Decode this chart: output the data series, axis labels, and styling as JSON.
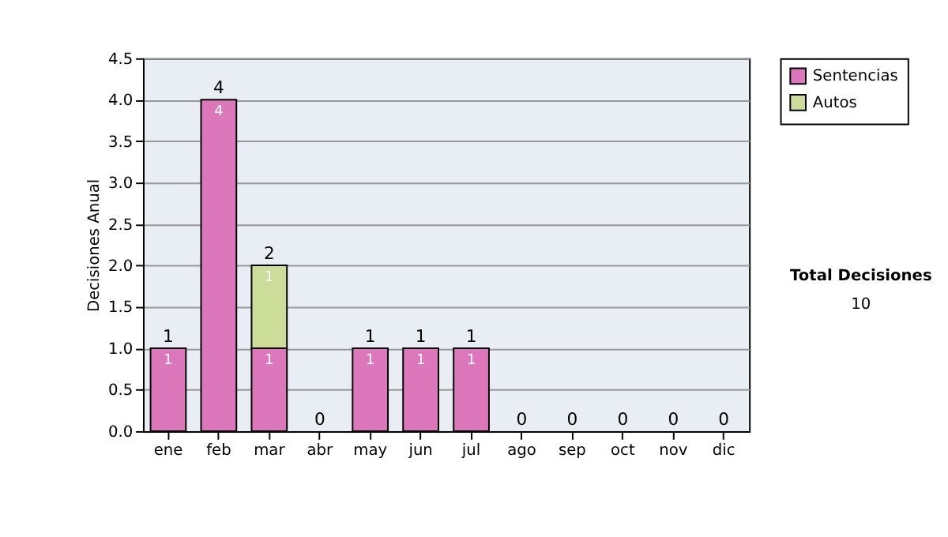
{
  "chart_data": {
    "type": "bar",
    "stacked": true,
    "ylabel": "Decisiones Anual",
    "categories": [
      "ene",
      "feb",
      "mar",
      "abr",
      "may",
      "jun",
      "jul",
      "ago",
      "sep",
      "oct",
      "nov",
      "dic"
    ],
    "series": [
      {
        "name": "Sentencias",
        "color": "#dd77bb",
        "values": [
          1,
          4,
          1,
          0,
          1,
          1,
          1,
          0,
          0,
          0,
          0,
          0
        ],
        "value_labels": [
          "1",
          "4",
          "1",
          null,
          "1",
          "1",
          "1",
          null,
          null,
          null,
          null,
          null
        ]
      },
      {
        "name": "Autos",
        "color": "#ccdd99",
        "values": [
          0,
          0,
          1,
          0,
          0,
          0,
          0,
          0,
          0,
          0,
          0,
          0
        ],
        "value_labels": [
          null,
          null,
          "1",
          null,
          null,
          null,
          null,
          null,
          null,
          null,
          null,
          null
        ]
      }
    ],
    "totals": [
      "1",
      "4",
      "2",
      "0",
      "1",
      "1",
      "1",
      "0",
      "0",
      "0",
      "0",
      "0"
    ],
    "ylim": [
      0,
      4.5
    ],
    "yticks": [
      {
        "value": 0,
        "label": "0.0"
      },
      {
        "value": 0.5,
        "label": "0.5"
      },
      {
        "value": 1,
        "label": "1.0"
      },
      {
        "value": 1.5,
        "label": "1.5"
      },
      {
        "value": 2,
        "label": "2.0"
      },
      {
        "value": 2.5,
        "label": "2.5"
      },
      {
        "value": 3,
        "label": "3.0"
      },
      {
        "value": 3.5,
        "label": "3.5"
      },
      {
        "value": 4,
        "label": "4.0"
      },
      {
        "value": 4.5,
        "label": "4.5"
      }
    ],
    "grid": "y",
    "legend": "right",
    "annotations": [
      "Total Decisiones",
      "10"
    ]
  }
}
